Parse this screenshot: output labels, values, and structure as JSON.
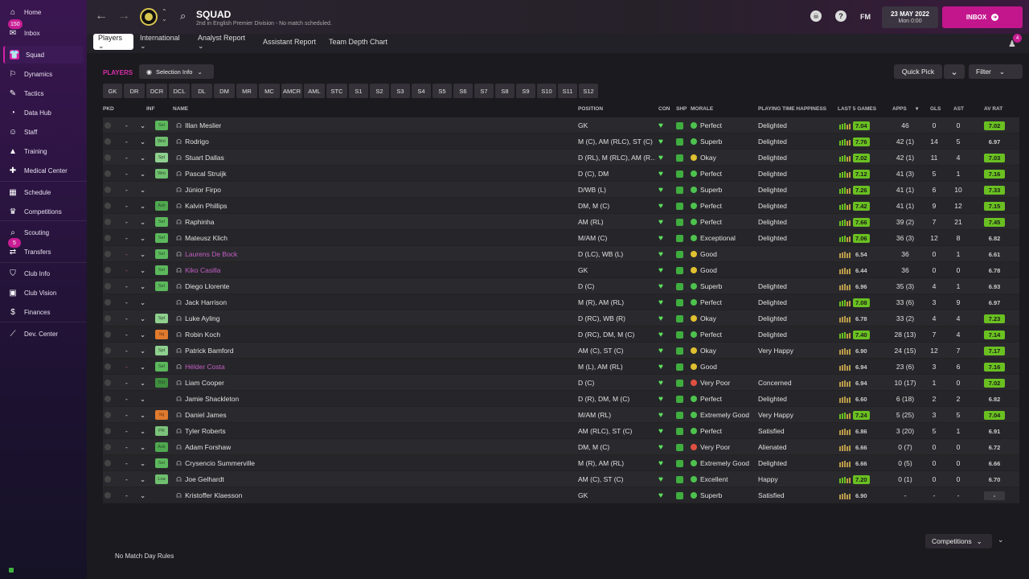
{
  "sidebar": {
    "items": [
      {
        "label": "Home",
        "icon": "home-icon",
        "glyph": "⌂"
      },
      {
        "label": "Inbox",
        "icon": "inbox-icon",
        "glyph": "✉",
        "badge": "150"
      },
      {
        "label": "Squad",
        "icon": "squad-icon",
        "glyph": "👕",
        "active": true
      },
      {
        "label": "Dynamics",
        "icon": "dynamics-icon",
        "glyph": "⚐"
      },
      {
        "label": "Tactics",
        "icon": "tactics-icon",
        "glyph": "✎"
      },
      {
        "label": "Data Hub",
        "icon": "data-hub-icon",
        "glyph": "◔"
      },
      {
        "label": "Staff",
        "icon": "staff-icon",
        "glyph": "☺"
      },
      {
        "label": "Training",
        "icon": "training-icon",
        "glyph": "▲"
      },
      {
        "label": "Medical Center",
        "icon": "medical-icon",
        "glyph": "✚"
      },
      {
        "label": "Schedule",
        "icon": "schedule-icon",
        "glyph": "▦"
      },
      {
        "label": "Competitions",
        "icon": "trophy-icon",
        "glyph": "♛"
      },
      {
        "label": "Scouting",
        "icon": "scouting-icon",
        "glyph": "⌕"
      },
      {
        "label": "Transfers",
        "icon": "transfers-icon",
        "glyph": "⇄",
        "badge": "5"
      },
      {
        "label": "Club Info",
        "icon": "club-info-icon",
        "glyph": "⛉"
      },
      {
        "label": "Club Vision",
        "icon": "club-vision-icon",
        "glyph": "▣"
      },
      {
        "label": "Finances",
        "icon": "finances-icon",
        "glyph": "$"
      },
      {
        "label": "Dev. Center",
        "icon": "dev-center-icon",
        "glyph": "⟋"
      }
    ]
  },
  "header": {
    "title": "SQUAD",
    "subtitle": "2nd in English Premier Division - No match scheduled.",
    "date": "23 MAY 2022",
    "day_time": "Mon 0:00",
    "inbox_label": "INBOX",
    "fm_label": "FM",
    "help_label": "?",
    "notif_badge": "4"
  },
  "tabs": [
    {
      "label": "Players ⌄",
      "active": true
    },
    {
      "label": "International ⌄"
    },
    {
      "label": "Analyst Report ⌄"
    },
    {
      "label": "Assistant Report"
    },
    {
      "label": "Team Depth Chart"
    }
  ],
  "toolbar": {
    "section_label": "PLAYERS",
    "selection_info": "Selection Info",
    "quick_pick": "Quick Pick",
    "filter": "Filter"
  },
  "positions": [
    "GK",
    "DR",
    "DCR",
    "DCL",
    "DL",
    "DM",
    "MR",
    "MC",
    "AMCR",
    "AML",
    "STC",
    "S1",
    "S2",
    "S3",
    "S4",
    "S5",
    "S6",
    "S7",
    "S8",
    "S9",
    "S10",
    "S11",
    "S12"
  ],
  "columns": {
    "pkd": "PKD",
    "inf": "INF",
    "name": "NAME",
    "position": "POSITION",
    "con": "CON",
    "shp": "SHP",
    "morale": "MORALE",
    "happiness": "PLAYING TIME HAPPINESS",
    "last5": "LAST 5 GAMES",
    "apps": "APPS",
    "gls": "GLS",
    "ast": "AST",
    "avrat": "AV RAT"
  },
  "players": [
    {
      "inf": "Sel",
      "name": "Illan Meslier",
      "pos": "GK",
      "morale": "Perfect",
      "happy": "Delighted",
      "last5": "7.04",
      "apps": "46",
      "gls": "0",
      "ast": "0",
      "av": "7.02"
    },
    {
      "inf": "Wnt",
      "name": "Rodrigo",
      "pos": "M (C), AM (RLC), ST (C)",
      "morale": "Superb",
      "happy": "Delighted",
      "last5": "7.76",
      "apps": "42 (1)",
      "gls": "14",
      "ast": "5",
      "av": "6.97"
    },
    {
      "inf": "Spt",
      "name": "Stuart Dallas",
      "pos": "D (RL), M (RLC), AM (R...",
      "morale": "Okay",
      "happy": "Delighted",
      "last5": "7.02",
      "apps": "42 (1)",
      "gls": "11",
      "ast": "4",
      "av": "7.03"
    },
    {
      "inf": "Wnt",
      "name": "Pascal Struijk",
      "pos": "D (C), DM",
      "morale": "Perfect",
      "happy": "Delighted",
      "last5": "7.12",
      "apps": "41 (3)",
      "gls": "5",
      "ast": "1",
      "av": "7.16"
    },
    {
      "inf": "",
      "name": "Júnior Firpo",
      "pos": "D/WB (L)",
      "morale": "Superb",
      "happy": "Delighted",
      "last5": "7.26",
      "apps": "41 (1)",
      "gls": "6",
      "ast": "10",
      "av": "7.33"
    },
    {
      "inf": "Ask",
      "name": "Kalvin Phillips",
      "pos": "DM, M (C)",
      "morale": "Perfect",
      "happy": "Delighted",
      "last5": "7.42",
      "apps": "41 (1)",
      "gls": "9",
      "ast": "12",
      "av": "7.15"
    },
    {
      "inf": "Sel",
      "name": "Raphinha",
      "pos": "AM (RL)",
      "morale": "Perfect",
      "happy": "Delighted",
      "last5": "7.66",
      "apps": "39 (2)",
      "gls": "7",
      "ast": "21",
      "av": "7.45"
    },
    {
      "inf": "Sel",
      "name": "Mateusz Klich",
      "pos": "M/AM (C)",
      "morale": "Exceptional",
      "happy": "Delighted",
      "last5": "7.06",
      "apps": "36 (3)",
      "gls": "12",
      "ast": "8",
      "av": "6.82"
    },
    {
      "inf": "Sel",
      "name": "Laurens De Bock",
      "pos": "D (LC), WB (L)",
      "morale": "Good",
      "happy": "",
      "last5": "6.54",
      "apps": "36",
      "gls": "0",
      "ast": "1",
      "av": "6.61",
      "loan": true
    },
    {
      "inf": "Sel",
      "name": "Kiko Casilla",
      "pos": "GK",
      "morale": "Good",
      "happy": "",
      "last5": "6.44",
      "apps": "36",
      "gls": "0",
      "ast": "0",
      "av": "6.78",
      "loan": true
    },
    {
      "inf": "Sel",
      "name": "Diego Llorente",
      "pos": "D (C)",
      "morale": "Superb",
      "happy": "Delighted",
      "last5": "6.96",
      "apps": "35 (3)",
      "gls": "4",
      "ast": "1",
      "av": "6.93"
    },
    {
      "inf": "",
      "name": "Jack Harrison",
      "pos": "M (R), AM (RL)",
      "morale": "Perfect",
      "happy": "Delighted",
      "last5": "7.08",
      "apps": "33 (6)",
      "gls": "3",
      "ast": "9",
      "av": "6.97"
    },
    {
      "inf": "Spt",
      "name": "Luke Ayling",
      "pos": "D (RC), WB (R)",
      "morale": "Okay",
      "happy": "Delighted",
      "last5": "6.78",
      "apps": "33 (2)",
      "gls": "4",
      "ast": "4",
      "av": "7.23"
    },
    {
      "inf": "Inj",
      "name": "Robin Koch",
      "pos": "D (RC), DM, M (C)",
      "morale": "Perfect",
      "happy": "Delighted",
      "last5": "7.40",
      "apps": "28 (13)",
      "gls": "7",
      "ast": "4",
      "av": "7.14"
    },
    {
      "inf": "Spt",
      "name": "Patrick Bamford",
      "pos": "AM (C), ST (C)",
      "morale": "Okay",
      "happy": "Very Happy",
      "last5": "6.90",
      "apps": "24 (15)",
      "gls": "12",
      "ast": "7",
      "av": "7.17"
    },
    {
      "inf": "Sel",
      "name": "Hélder Costa",
      "pos": "M (L), AM (RL)",
      "morale": "Good",
      "happy": "",
      "last5": "6.94",
      "apps": "23 (6)",
      "gls": "3",
      "ast": "6",
      "av": "7.16",
      "loan": true
    },
    {
      "inf": "Bld",
      "name": "Liam Cooper",
      "pos": "D (C)",
      "morale": "Very Poor",
      "happy": "Concerned",
      "last5": "6.94",
      "apps": "10 (17)",
      "gls": "1",
      "ast": "0",
      "av": "7.02"
    },
    {
      "inf": "",
      "name": "Jamie Shackleton",
      "pos": "D (R), DM, M (C)",
      "morale": "Perfect",
      "happy": "Delighted",
      "last5": "6.60",
      "apps": "6 (18)",
      "gls": "2",
      "ast": "2",
      "av": "6.82"
    },
    {
      "inf": "Inj",
      "name": "Daniel James",
      "pos": "M/AM (RL)",
      "morale": "Extremely Good",
      "happy": "Very Happy",
      "last5": "7.24",
      "apps": "5 (25)",
      "gls": "3",
      "ast": "5",
      "av": "7.04"
    },
    {
      "inf": "PR",
      "name": "Tyler Roberts",
      "pos": "AM (RLC), ST (C)",
      "morale": "Perfect",
      "happy": "Satisfied",
      "last5": "6.86",
      "apps": "3 (20)",
      "gls": "5",
      "ast": "1",
      "av": "6.91"
    },
    {
      "inf": "Ask",
      "name": "Adam Forshaw",
      "pos": "DM, M (C)",
      "morale": "Very Poor",
      "happy": "Alienated",
      "last5": "6.66",
      "apps": "0 (7)",
      "gls": "0",
      "ast": "0",
      "av": "6.72"
    },
    {
      "inf": "Sel",
      "name": "Crysencio Summerville",
      "pos": "M (R), AM (RL)",
      "morale": "Extremely Good",
      "happy": "Delighted",
      "last5": "6.66",
      "apps": "0 (5)",
      "gls": "0",
      "ast": "0",
      "av": "6.66"
    },
    {
      "inf": "Loa",
      "name": "Joe Gelhardt",
      "pos": "AM (C), ST (C)",
      "morale": "Excellent",
      "happy": "Happy",
      "last5": "7.20",
      "apps": "0 (1)",
      "gls": "0",
      "ast": "0",
      "av": "6.70"
    },
    {
      "inf": "",
      "name": "Kristoffer Klaesson",
      "pos": "GK",
      "morale": "Superb",
      "happy": "Satisfied",
      "last5": "6.90",
      "apps": "-",
      "gls": "-",
      "ast": "-",
      "av": "-"
    }
  ],
  "footer": {
    "rules": "No Match Day Rules",
    "competitions": "Competitions"
  },
  "pkd_dash": "-",
  "colors": {
    "accent": "#c3168d",
    "green_rating": "#6ac021",
    "gold_rating": "#bba35a"
  }
}
